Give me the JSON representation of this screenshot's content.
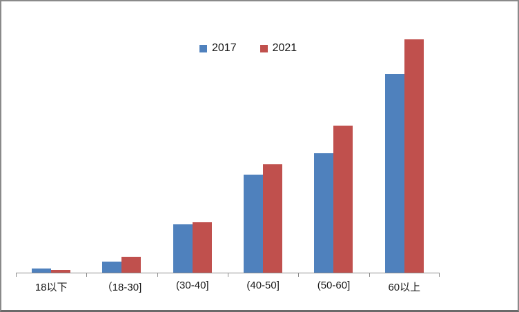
{
  "window": {
    "background": "#ffffff",
    "frame_border_color": "#8a8a8a"
  },
  "colors": {
    "series_2017": "#4F81BD",
    "series_2021": "#C0504D",
    "axis": "#8a8a8a",
    "text": "#1a1a1a"
  },
  "chart_data": {
    "type": "bar",
    "title": "",
    "xlabel": "",
    "ylabel": "",
    "categories": [
      "18以下",
      "（18-30]",
      "(30-40]",
      "(40-50]",
      "(50-60]",
      "60以上"
    ],
    "series": [
      {
        "name": "2017",
        "color": "#4F81BD",
        "values": [
          1.7,
          4.7,
          20.6,
          41.9,
          51.1,
          85.3
        ]
      },
      {
        "name": "2021",
        "color": "#C0504D",
        "values": [
          1.1,
          6.8,
          21.5,
          46.6,
          62.9,
          100
        ]
      }
    ],
    "value_axis_visible": false,
    "value_note": "no value axis or gridlines shown; values estimated relative to tallest bar = 100",
    "ylim": [
      0,
      100
    ],
    "grid": false,
    "legend_position": "top-center",
    "legend_entries": [
      "2017",
      "2021"
    ]
  }
}
